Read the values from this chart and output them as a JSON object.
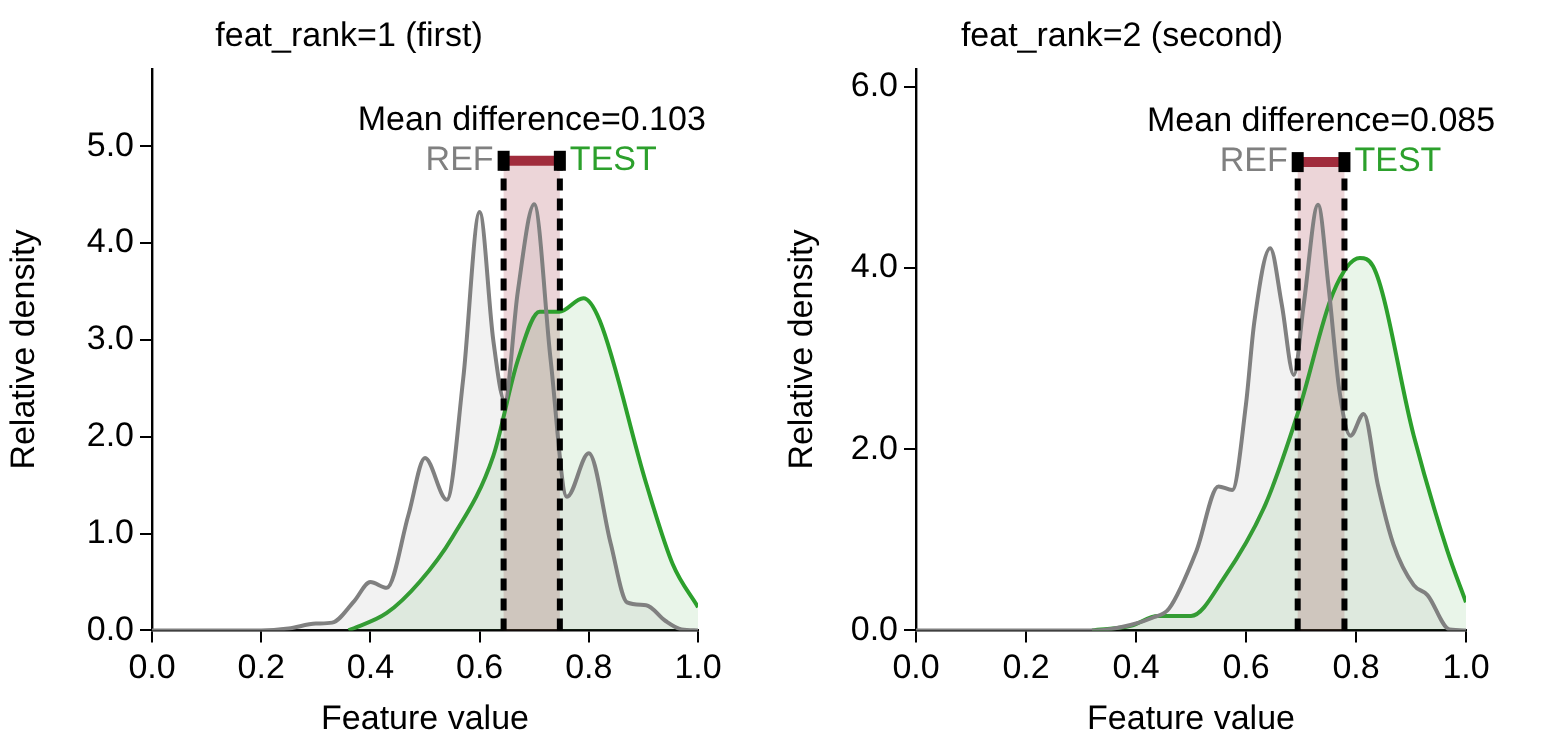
{
  "chart_data": [
    {
      "type": "area",
      "title": "feat_rank=1 (first)",
      "xlabel": "Feature value",
      "ylabel": "Relative density",
      "xlim": [
        0,
        1
      ],
      "ylim": [
        0,
        5.8
      ],
      "xticks": [
        {
          "value": 0,
          "label": "0.0"
        },
        {
          "value": 0.2,
          "label": "0.2"
        },
        {
          "value": 0.4,
          "label": "0.4"
        },
        {
          "value": 0.6,
          "label": "0.6"
        },
        {
          "value": 0.8,
          "label": "0.8"
        },
        {
          "value": 1,
          "label": "1.0"
        }
      ],
      "yticks": [
        {
          "value": 0,
          "label": "0.0"
        },
        {
          "value": 1,
          "label": "1.0"
        },
        {
          "value": 2,
          "label": "2.0"
        },
        {
          "value": 3,
          "label": "3.0"
        },
        {
          "value": 4,
          "label": "4.0"
        },
        {
          "value": 5,
          "label": "5.0"
        }
      ],
      "marker": "none",
      "grid": false,
      "legend": false,
      "series": [
        {
          "color": "#808080",
          "x": [
            0,
            0.2,
            0.25,
            0.3,
            0.33,
            0.37,
            0.4,
            0.43,
            0.47,
            0.5,
            0.54,
            0.57,
            0.6,
            0.625,
            0.646,
            0.67,
            0.7,
            0.73,
            0.76,
            0.8,
            0.84,
            0.87,
            0.905,
            0.94,
            0.97,
            1
          ],
          "values": [
            0,
            0,
            0.02,
            0.07,
            0.08,
            0.3,
            0.5,
            0.44,
            1.2,
            1.78,
            1.35,
            2.6,
            4.32,
            3.0,
            2.37,
            3.5,
            4.4,
            2.8,
            1.38,
            1.83,
            0.9,
            0.29,
            0.26,
            0.1,
            0.01,
            0
          ]
        },
        {
          "color": "#2ca02c",
          "x": [
            0.36,
            0.43,
            0.49,
            0.55,
            0.625,
            0.67,
            0.71,
            0.746,
            0.79,
            0.82,
            0.905,
            0.954,
            1
          ],
          "values": [
            0,
            0.18,
            0.5,
            0.96,
            1.8,
            2.79,
            3.29,
            3.29,
            3.43,
            3.2,
            1.52,
            0.68,
            0.24
          ]
        }
      ],
      "ref_lines": [
        {
          "axis": "x",
          "value": 0.644,
          "color": "#000000",
          "line_style": "dashed"
        },
        {
          "axis": "x",
          "value": 0.747,
          "color": "#000000",
          "line_style": "dashed"
        }
      ],
      "bands": [
        {
          "axis": "x",
          "from": 0.644,
          "to": 0.747,
          "color": "#a02c3c"
        }
      ],
      "annotations": [
        "Mean difference=0.103",
        {
          "text": "REF",
          "x": 0.644,
          "y": 4.85
        },
        {
          "text": "TEST",
          "x": 0.747,
          "y": 4.85
        }
      ]
    },
    {
      "type": "area",
      "title": "feat_rank=2 (second)",
      "xlabel": "Feature value",
      "ylabel": "Relative density",
      "xlim": [
        0,
        1
      ],
      "ylim": [
        0,
        6.2
      ],
      "xticks": [
        {
          "value": 0,
          "label": "0.0"
        },
        {
          "value": 0.2,
          "label": "0.2"
        },
        {
          "value": 0.4,
          "label": "0.4"
        },
        {
          "value": 0.6,
          "label": "0.6"
        },
        {
          "value": 0.8,
          "label": "0.8"
        },
        {
          "value": 1,
          "label": "1.0"
        }
      ],
      "yticks": [
        {
          "value": 0,
          "label": "0.0"
        },
        {
          "value": 2,
          "label": "2.0"
        },
        {
          "value": 4,
          "label": "4.0"
        },
        {
          "value": 6,
          "label": "6.0"
        }
      ],
      "marker": "none",
      "grid": false,
      "legend": false,
      "series": [
        {
          "color": "#808080",
          "x": [
            0,
            0.33,
            0.39,
            0.43,
            0.46,
            0.51,
            0.55,
            0.575,
            0.6,
            0.615,
            0.644,
            0.665,
            0.687,
            0.705,
            0.731,
            0.75,
            0.77,
            0.79,
            0.814,
            0.84,
            0.868,
            0.905,
            0.93,
            0.97,
            1
          ],
          "values": [
            0,
            0,
            0.06,
            0.14,
            0.24,
            0.88,
            1.59,
            1.55,
            2.5,
            3.4,
            4.22,
            3.6,
            2.82,
            3.6,
            4.7,
            3.8,
            2.64,
            2.15,
            2.39,
            1.6,
            0.95,
            0.5,
            0.39,
            0.01,
            0
          ]
        },
        {
          "color": "#2ca02c",
          "x": [
            0.32,
            0.39,
            0.44,
            0.5,
            0.56,
            0.636,
            0.697,
            0.758,
            0.807,
            0.831,
            0.905,
            0.966,
            1
          ],
          "values": [
            0,
            0.05,
            0.16,
            0.16,
            0.58,
            1.4,
            2.45,
            3.72,
            4.11,
            4.02,
            2.15,
            0.88,
            0.31
          ]
        }
      ],
      "ref_lines": [
        {
          "axis": "x",
          "value": 0.694,
          "color": "#000000",
          "line_style": "dashed"
        },
        {
          "axis": "x",
          "value": 0.779,
          "color": "#000000",
          "line_style": "dashed"
        }
      ],
      "bands": [
        {
          "axis": "x",
          "from": 0.694,
          "to": 0.779,
          "color": "#a02c3c"
        }
      ],
      "annotations": [
        "Mean difference=0.085",
        {
          "text": "REF",
          "x": 0.694,
          "y": 5.17
        },
        {
          "text": "TEST",
          "x": 0.779,
          "y": 5.17
        }
      ]
    }
  ]
}
